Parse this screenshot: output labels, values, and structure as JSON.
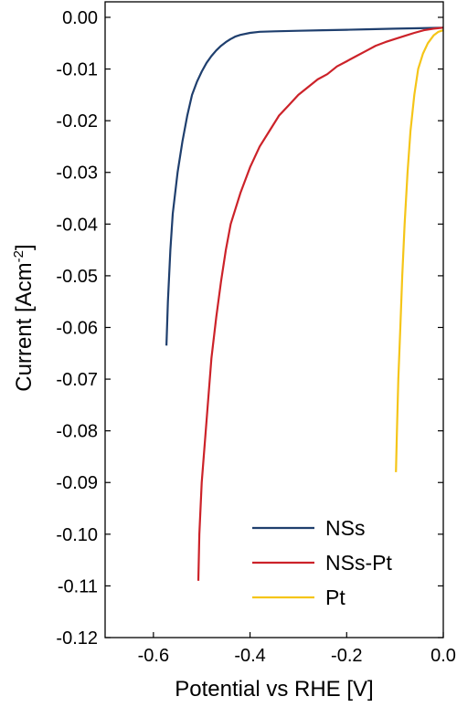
{
  "chart_data": {
    "type": "line",
    "title": "",
    "xlabel": "Potential vs RHE [V]",
    "ylabel": "Current [Acm",
    "ylabel_sup": "-2",
    "ylabel_close": "]",
    "xlim": [
      -0.7,
      0.0
    ],
    "ylim": [
      -0.12,
      0.003
    ],
    "xticks": [
      -0.6,
      -0.4,
      -0.2,
      0.0
    ],
    "xtick_labels": [
      "-0.6",
      "-0.4",
      "-0.2",
      "0.0"
    ],
    "yticks": [
      0.0,
      -0.01,
      -0.02,
      -0.03,
      -0.04,
      -0.05,
      -0.06,
      -0.07,
      -0.08,
      -0.09,
      -0.1,
      -0.11,
      -0.12
    ],
    "ytick_labels": [
      "0.00",
      "-0.01",
      "-0.02",
      "-0.03",
      "-0.04",
      "-0.05",
      "-0.06",
      "-0.07",
      "-0.08",
      "-0.09",
      "-0.10",
      "-0.11",
      "-0.12"
    ],
    "grid": false,
    "legend_position": "bottom-right",
    "series": [
      {
        "name": "NSs",
        "color": "#1f3f6e",
        "points": [
          [
            -0.573,
            -0.0635
          ],
          [
            -0.57,
            -0.055
          ],
          [
            -0.565,
            -0.045
          ],
          [
            -0.56,
            -0.038
          ],
          [
            -0.55,
            -0.03
          ],
          [
            -0.54,
            -0.024
          ],
          [
            -0.53,
            -0.019
          ],
          [
            -0.52,
            -0.015
          ],
          [
            -0.51,
            -0.0125
          ],
          [
            -0.5,
            -0.0105
          ],
          [
            -0.49,
            -0.0088
          ],
          [
            -0.48,
            -0.0075
          ],
          [
            -0.47,
            -0.0064
          ],
          [
            -0.46,
            -0.0055
          ],
          [
            -0.45,
            -0.0048
          ],
          [
            -0.44,
            -0.0042
          ],
          [
            -0.43,
            -0.0037
          ],
          [
            -0.42,
            -0.0034
          ],
          [
            -0.4,
            -0.003
          ],
          [
            -0.38,
            -0.0028
          ],
          [
            -0.35,
            -0.0027
          ],
          [
            -0.3,
            -0.0026
          ],
          [
            -0.25,
            -0.0025
          ],
          [
            -0.2,
            -0.0024
          ],
          [
            -0.15,
            -0.0023
          ],
          [
            -0.1,
            -0.0022
          ],
          [
            -0.05,
            -0.0021
          ],
          [
            0.0,
            -0.002
          ]
        ]
      },
      {
        "name": "NSs-Pt",
        "color": "#cc2229",
        "points": [
          [
            -0.507,
            -0.109
          ],
          [
            -0.505,
            -0.1
          ],
          [
            -0.5,
            -0.09
          ],
          [
            -0.49,
            -0.078
          ],
          [
            -0.48,
            -0.066
          ],
          [
            -0.47,
            -0.058
          ],
          [
            -0.46,
            -0.051
          ],
          [
            -0.45,
            -0.045
          ],
          [
            -0.44,
            -0.04
          ],
          [
            -0.42,
            -0.034
          ],
          [
            -0.4,
            -0.029
          ],
          [
            -0.38,
            -0.025
          ],
          [
            -0.36,
            -0.022
          ],
          [
            -0.34,
            -0.019
          ],
          [
            -0.32,
            -0.017
          ],
          [
            -0.3,
            -0.015
          ],
          [
            -0.28,
            -0.0135
          ],
          [
            -0.26,
            -0.012
          ],
          [
            -0.24,
            -0.011
          ],
          [
            -0.22,
            -0.0095
          ],
          [
            -0.2,
            -0.0085
          ],
          [
            -0.18,
            -0.0075
          ],
          [
            -0.16,
            -0.0065
          ],
          [
            -0.14,
            -0.0055
          ],
          [
            -0.12,
            -0.0048
          ],
          [
            -0.1,
            -0.0042
          ],
          [
            -0.08,
            -0.0036
          ],
          [
            -0.06,
            -0.003
          ],
          [
            -0.04,
            -0.0025
          ],
          [
            -0.02,
            -0.0022
          ],
          [
            0.0,
            -0.002
          ]
        ]
      },
      {
        "name": "Pt",
        "color": "#f5c518",
        "points": [
          [
            -0.098,
            -0.088
          ],
          [
            -0.096,
            -0.08
          ],
          [
            -0.093,
            -0.07
          ],
          [
            -0.089,
            -0.06
          ],
          [
            -0.085,
            -0.05
          ],
          [
            -0.08,
            -0.04
          ],
          [
            -0.074,
            -0.03
          ],
          [
            -0.068,
            -0.022
          ],
          [
            -0.06,
            -0.015
          ],
          [
            -0.052,
            -0.01
          ],
          [
            -0.042,
            -0.007
          ],
          [
            -0.032,
            -0.005
          ],
          [
            -0.02,
            -0.0035
          ],
          [
            -0.01,
            -0.0028
          ],
          [
            0.0,
            -0.0025
          ]
        ]
      }
    ]
  }
}
